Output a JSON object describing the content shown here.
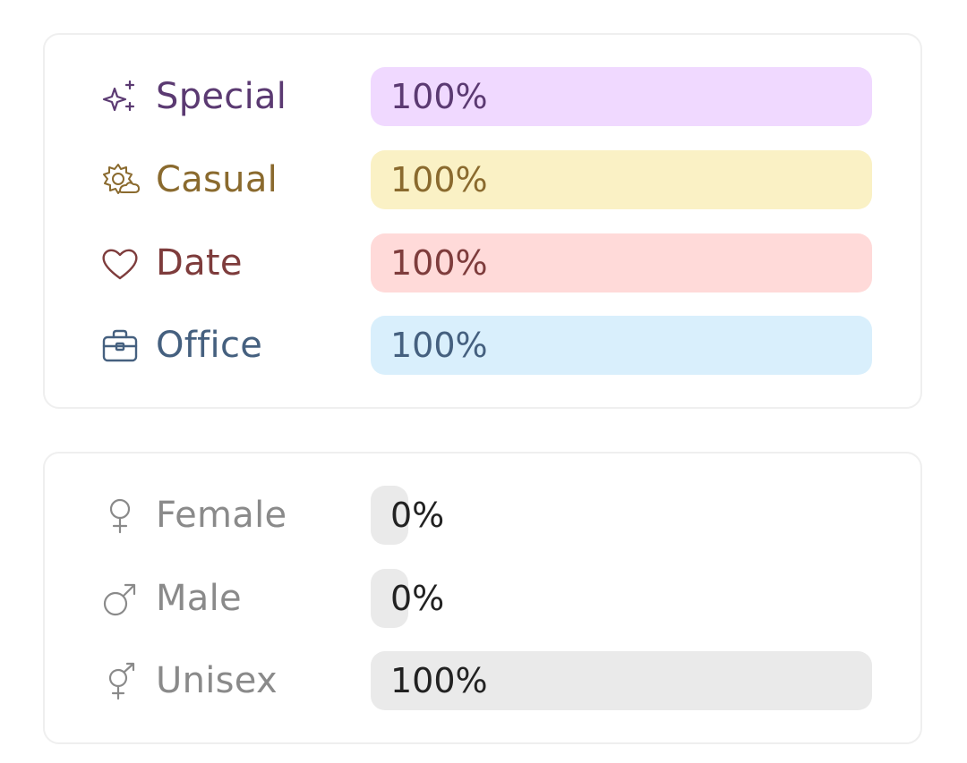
{
  "occasion": {
    "rows": [
      {
        "label": "Special",
        "value_text": "100%",
        "value": 1.0,
        "icon": "sparkles-icon",
        "text_color": "#5b3a72",
        "bar_color": "#f0d9ff"
      },
      {
        "label": "Casual",
        "value_text": "100%",
        "value": 1.0,
        "icon": "sun-cloud-icon",
        "text_color": "#8a6a2e",
        "bar_color": "#faf1c5"
      },
      {
        "label": "Date",
        "value_text": "100%",
        "value": 1.0,
        "icon": "heart-icon",
        "text_color": "#7e3c3c",
        "bar_color": "#ffdad9"
      },
      {
        "label": "Office",
        "value_text": "100%",
        "value": 1.0,
        "icon": "briefcase-icon",
        "text_color": "#45607f",
        "bar_color": "#d9effc"
      }
    ]
  },
  "gender": {
    "rows": [
      {
        "label": "Female",
        "value_text": "0%",
        "value": 0.0,
        "icon": "female-symbol-icon",
        "text_color": "#8a8a8a",
        "value_color": "#222222",
        "bar_color": "#eaeaea"
      },
      {
        "label": "Male",
        "value_text": "0%",
        "value": 0.0,
        "icon": "male-symbol-icon",
        "text_color": "#8a8a8a",
        "value_color": "#222222",
        "bar_color": "#eaeaea"
      },
      {
        "label": "Unisex",
        "value_text": "100%",
        "value": 1.0,
        "icon": "unisex-symbol-icon",
        "text_color": "#8a8a8a",
        "value_color": "#222222",
        "bar_color": "#eaeaea"
      }
    ]
  }
}
